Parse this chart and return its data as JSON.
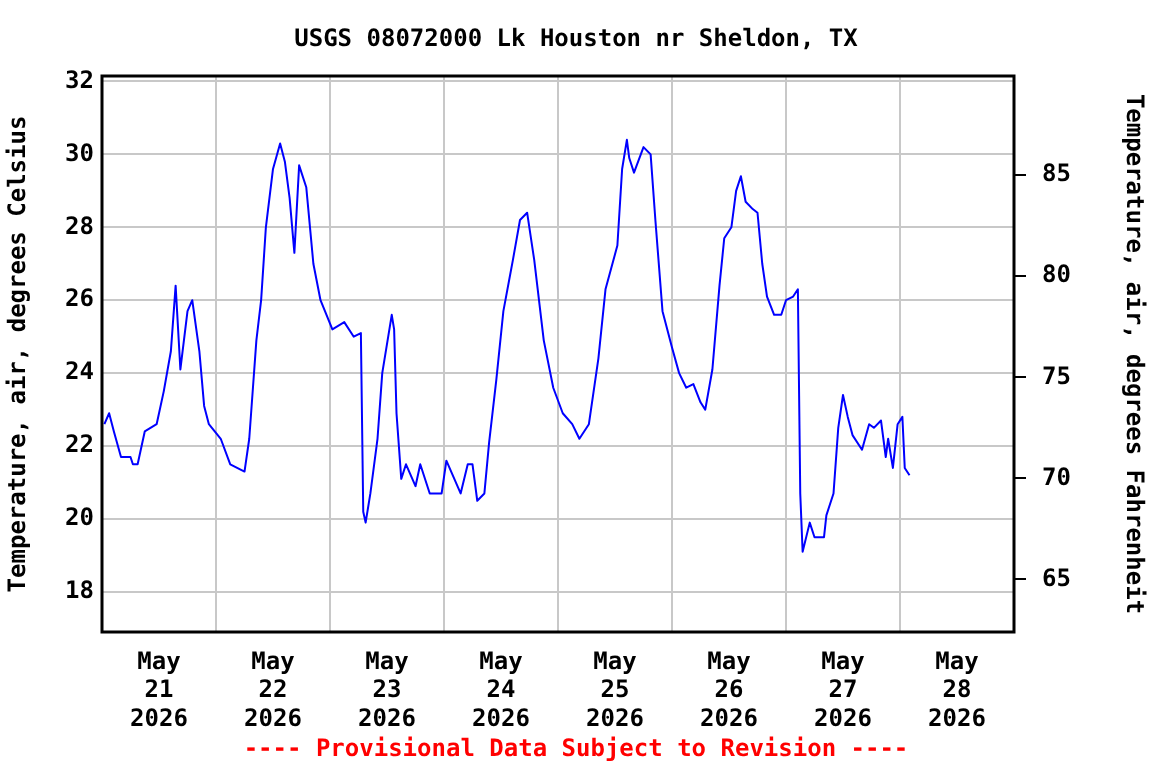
{
  "chart_data": {
    "type": "line",
    "title": "USGS 08072000 Lk Houston nr Sheldon, TX",
    "ylabel": "Temperature, air, degrees Celsius",
    "y2label": "Temperature, air, degrees Fahrenheit",
    "annotations": [
      "---- Provisional Data Subject to Revision ----"
    ],
    "xlim": [
      "2026-05-21T00:00",
      "2026-05-29T00:00"
    ],
    "xticks": [
      {
        "value": "2026-05-21T12:00",
        "label": "May 21 2026"
      },
      {
        "value": "2026-05-22T00:00",
        "label": null
      },
      {
        "value": "2026-05-22T12:00",
        "label": "May 22 2026"
      },
      {
        "value": "2026-05-23T00:00",
        "label": null
      },
      {
        "value": "2026-05-23T12:00",
        "label": "May 23 2026"
      },
      {
        "value": "2026-05-24T00:00",
        "label": null
      },
      {
        "value": "2026-05-24T12:00",
        "label": "May 24 2026"
      },
      {
        "value": "2026-05-25T00:00",
        "label": null
      },
      {
        "value": "2026-05-25T12:00",
        "label": "May 25 2026"
      },
      {
        "value": "2026-05-26T00:00",
        "label": null
      },
      {
        "value": "2026-05-26T12:00",
        "label": "May 26 2026"
      },
      {
        "value": "2026-05-27T00:00",
        "label": null
      },
      {
        "value": "2026-05-27T12:00",
        "label": "May 27 2026"
      },
      {
        "value": "2026-05-28T00:00",
        "label": null
      },
      {
        "value": "2026-05-28T12:00",
        "label": "May 28 2026"
      }
    ],
    "ylim": [
      16.9,
      32.15
    ],
    "yticks": [
      18,
      20,
      22,
      24,
      26,
      28,
      30,
      32
    ],
    "y2lim": [
      62.4,
      89.9
    ],
    "y2ticks": [
      65,
      70,
      75,
      80,
      85
    ],
    "grid": true,
    "legend": false,
    "marker": "none",
    "line_style": "solid",
    "x": [
      "2026-05-21T00:30",
      "2026-05-21T01:30",
      "2026-05-21T02:30",
      "2026-05-21T04:00",
      "2026-05-21T06:00",
      "2026-05-21T06:30",
      "2026-05-21T07:30",
      "2026-05-21T09:00",
      "2026-05-21T11:30",
      "2026-05-21T13:00",
      "2026-05-21T14:30",
      "2026-05-21T15:30",
      "2026-05-21T16:30",
      "2026-05-21T18:00",
      "2026-05-21T19:00",
      "2026-05-21T20:30",
      "2026-05-21T21:30",
      "2026-05-21T22:30",
      "2026-05-22T01:00",
      "2026-05-22T03:00",
      "2026-05-22T06:00",
      "2026-05-22T07:00",
      "2026-05-22T08:30",
      "2026-05-22T09:30",
      "2026-05-22T10:30",
      "2026-05-22T12:00",
      "2026-05-22T13:30",
      "2026-05-22T14:30",
      "2026-05-22T15:30",
      "2026-05-22T16:30",
      "2026-05-22T17:30",
      "2026-05-22T19:00",
      "2026-05-22T20:30",
      "2026-05-22T22:00",
      "2026-05-23T00:30",
      "2026-05-23T03:00",
      "2026-05-23T05:00",
      "2026-05-23T06:30",
      "2026-05-23T07:00",
      "2026-05-23T07:30",
      "2026-05-23T08:30",
      "2026-05-23T10:00",
      "2026-05-23T11:00",
      "2026-05-23T13:00",
      "2026-05-23T13:30",
      "2026-05-23T14:00",
      "2026-05-23T15:00",
      "2026-05-23T16:00",
      "2026-05-23T18:00",
      "2026-05-23T19:00",
      "2026-05-23T21:00",
      "2026-05-23T23:30",
      "2026-05-24T00:30",
      "2026-05-24T03:30",
      "2026-05-24T05:00",
      "2026-05-24T06:00",
      "2026-05-24T07:00",
      "2026-05-24T08:30",
      "2026-05-24T09:30",
      "2026-05-24T11:00",
      "2026-05-24T12:30",
      "2026-05-24T14:30",
      "2026-05-24T16:00",
      "2026-05-24T17:30",
      "2026-05-24T19:00",
      "2026-05-24T21:00",
      "2026-05-24T23:00",
      "2026-05-25T01:00",
      "2026-05-25T03:00",
      "2026-05-25T04:30",
      "2026-05-25T06:30",
      "2026-05-25T08:30",
      "2026-05-25T10:00",
      "2026-05-25T12:30",
      "2026-05-25T13:30",
      "2026-05-25T14:30",
      "2026-05-25T15:00",
      "2026-05-25T16:00",
      "2026-05-25T18:00",
      "2026-05-25T19:30",
      "2026-05-25T20:30",
      "2026-05-25T22:00",
      "2026-05-26T00:00",
      "2026-05-26T01:30",
      "2026-05-26T03:00",
      "2026-05-26T04:30",
      "2026-05-26T06:00",
      "2026-05-26T07:00",
      "2026-05-26T08:30",
      "2026-05-26T10:00",
      "2026-05-26T11:00",
      "2026-05-26T12:30",
      "2026-05-26T13:30",
      "2026-05-26T14:30",
      "2026-05-26T15:30",
      "2026-05-26T17:00",
      "2026-05-26T18:00",
      "2026-05-26T19:00",
      "2026-05-26T20:00",
      "2026-05-26T21:30",
      "2026-05-26T23:00",
      "2026-05-27T00:00",
      "2026-05-27T01:30",
      "2026-05-27T02:30",
      "2026-05-27T03:00",
      "2026-05-27T03:30",
      "2026-05-27T05:00",
      "2026-05-27T06:00",
      "2026-05-27T08:00",
      "2026-05-27T08:30",
      "2026-05-27T10:00",
      "2026-05-27T11:00",
      "2026-05-27T12:00",
      "2026-05-27T13:00",
      "2026-05-27T14:00",
      "2026-05-27T16:00",
      "2026-05-27T17:30",
      "2026-05-27T18:30",
      "2026-05-27T20:00",
      "2026-05-27T21:00",
      "2026-05-27T21:30",
      "2026-05-27T22:30",
      "2026-05-27T23:30",
      "2026-05-28T00:30",
      "2026-05-28T01:00",
      "2026-05-28T02:00"
    ],
    "series": [
      {
        "color": "#0000ff",
        "values": [
          22.6,
          22.9,
          22.4,
          21.7,
          21.7,
          21.5,
          21.5,
          22.4,
          22.6,
          23.5,
          24.6,
          26.4,
          24.1,
          25.7,
          26.0,
          24.6,
          23.1,
          22.6,
          22.2,
          21.5,
          21.3,
          22.2,
          24.9,
          26.0,
          28.0,
          29.6,
          30.3,
          29.8,
          28.8,
          27.3,
          29.7,
          29.1,
          27.0,
          26.0,
          25.2,
          25.4,
          25.0,
          25.1,
          20.2,
          19.9,
          20.7,
          22.2,
          24.0,
          25.6,
          25.2,
          22.9,
          21.1,
          21.5,
          20.9,
          21.5,
          20.7,
          20.7,
          21.6,
          20.7,
          21.5,
          21.5,
          20.5,
          20.7,
          22.1,
          23.8,
          25.7,
          27.1,
          28.2,
          28.4,
          27.1,
          24.9,
          23.6,
          22.9,
          22.6,
          22.2,
          22.6,
          24.4,
          26.3,
          27.5,
          29.6,
          30.4,
          29.9,
          29.5,
          30.2,
          30.0,
          28.2,
          25.7,
          24.7,
          24.0,
          23.6,
          23.7,
          23.2,
          23.0,
          24.1,
          26.4,
          27.7,
          28.0,
          29.0,
          29.4,
          28.7,
          28.5,
          28.4,
          27.0,
          26.1,
          25.6,
          25.6,
          26.0,
          26.1,
          26.3,
          20.7,
          19.1,
          19.9,
          19.5,
          19.5,
          20.1,
          20.7,
          22.5,
          23.4,
          22.8,
          22.3,
          21.9,
          22.6,
          22.5,
          22.7,
          21.7,
          22.2,
          21.4,
          22.6,
          22.8,
          21.4,
          21.2
        ]
      }
    ]
  }
}
